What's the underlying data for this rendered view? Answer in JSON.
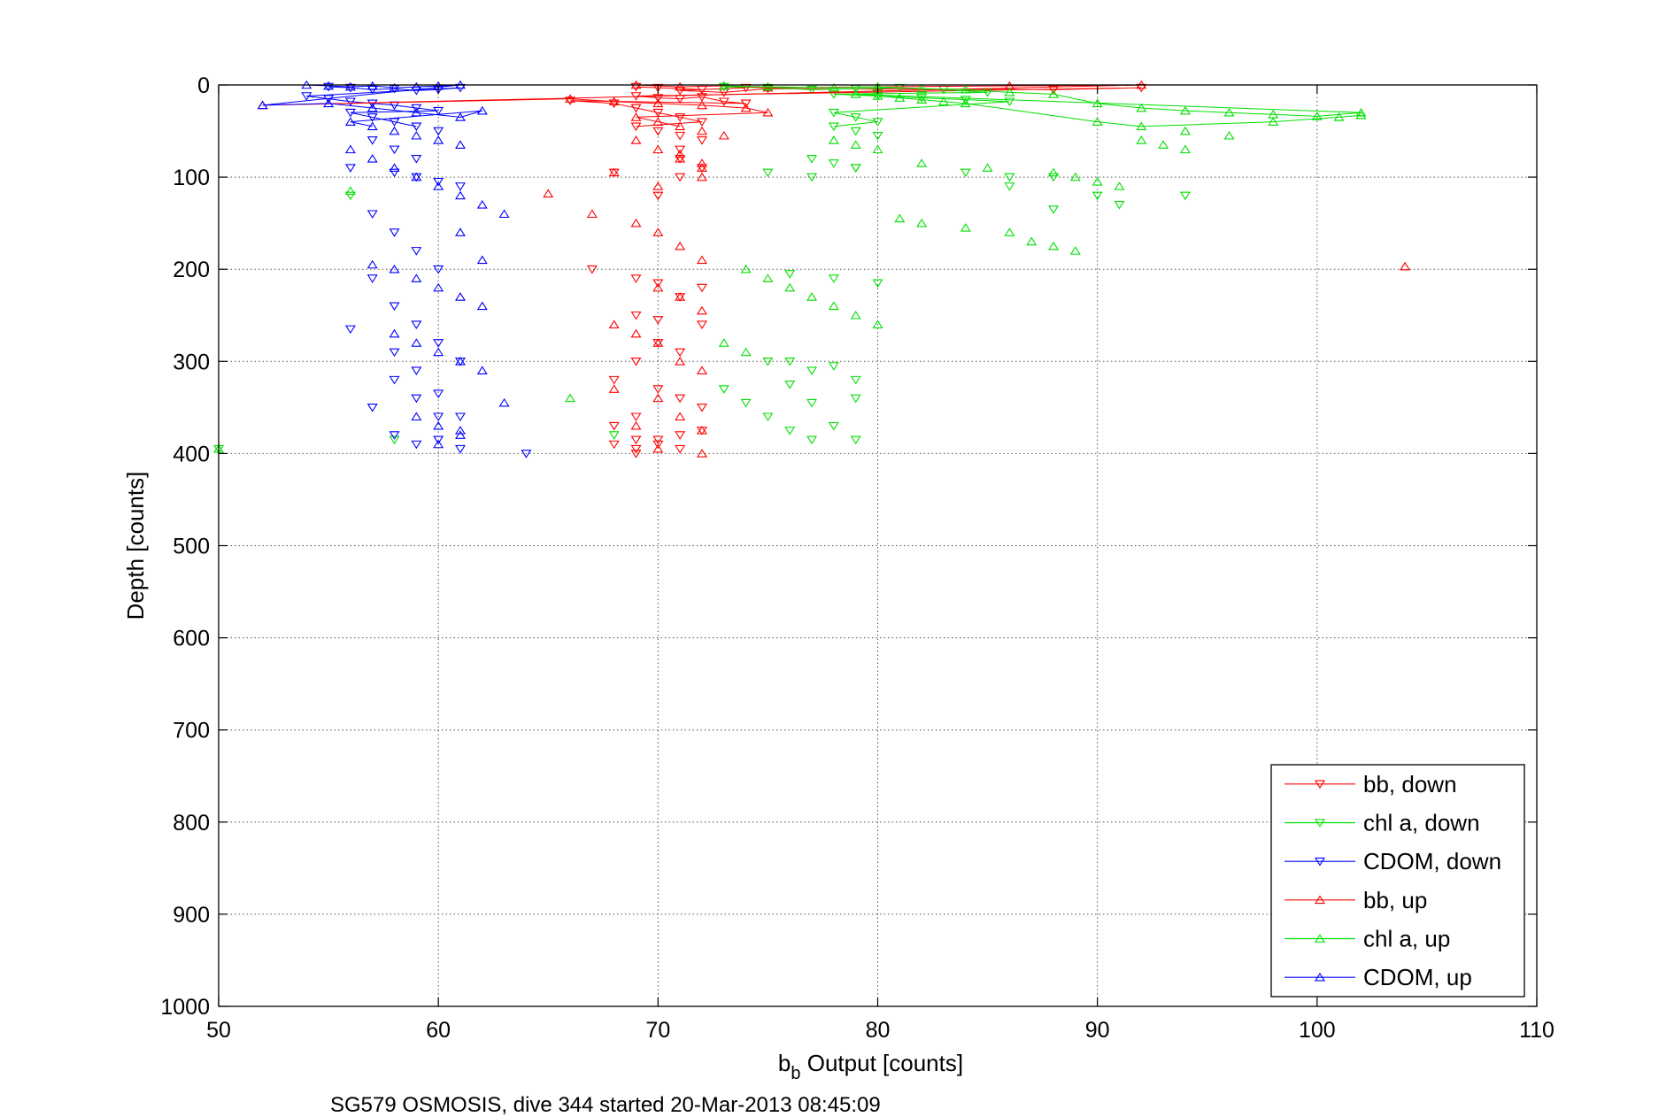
{
  "chart_data": {
    "type": "scatter",
    "xlabel_main": "b",
    "xlabel_sub": "b",
    "xlabel_rest": " Output [counts]",
    "ylabel": "Depth [counts]",
    "footer": "SG579 OSMOSIS, dive 344 started 20-Mar-2013 08:45:09",
    "xlim": [
      50,
      110
    ],
    "ylim": [
      0,
      1000
    ],
    "y_reversed": true,
    "grid": true,
    "legend_position": "bottom-right",
    "xticks": [
      "50",
      "60",
      "70",
      "80",
      "90",
      "100",
      "110"
    ],
    "yticks": [
      "0",
      "100",
      "200",
      "300",
      "400",
      "500",
      "600",
      "700",
      "800",
      "900",
      "1000"
    ],
    "colors": {
      "red": "#ff0000",
      "green": "#00e000",
      "blue": "#0000ff"
    },
    "series": [
      {
        "name": "bb, down",
        "color": "#ff0000",
        "marker": "triangle-down",
        "x": [
          69,
          70,
          72,
          74,
          71,
          73,
          75,
          88,
          92,
          69,
          70,
          71,
          72,
          73,
          74,
          66,
          68,
          69,
          70,
          71,
          72,
          69,
          70,
          71,
          72,
          71,
          71,
          72,
          71,
          68,
          70,
          67,
          69,
          70,
          72,
          71,
          69,
          70,
          72,
          70,
          71,
          69,
          68,
          70,
          71,
          72,
          69,
          68,
          69,
          70,
          71,
          72,
          71,
          68,
          69,
          70,
          69
        ],
        "y": [
          2,
          3,
          5,
          3,
          6,
          8,
          4,
          5,
          3,
          12,
          14,
          15,
          13,
          18,
          20,
          17,
          20,
          25,
          30,
          35,
          40,
          45,
          50,
          55,
          60,
          70,
          80,
          90,
          100,
          95,
          120,
          200,
          210,
          215,
          220,
          230,
          250,
          255,
          260,
          280,
          290,
          300,
          320,
          330,
          340,
          350,
          360,
          370,
          385,
          390,
          380,
          375,
          395,
          390,
          400,
          385,
          395
        ]
      },
      {
        "name": "chl a, down",
        "color": "#00e000",
        "marker": "triangle-down",
        "x": [
          73,
          75,
          77,
          79,
          81,
          83,
          85,
          78,
          80,
          82,
          84,
          86,
          78,
          79,
          80,
          78,
          79,
          80,
          77,
          78,
          79,
          75,
          77,
          79,
          84,
          86,
          88,
          86,
          88,
          90,
          91,
          94,
          76,
          78,
          80,
          78,
          79,
          76,
          77,
          79,
          75,
          76,
          77,
          78,
          79,
          56,
          58,
          50,
          68,
          74,
          75,
          73,
          76,
          77
        ],
        "y": [
          2,
          3,
          5,
          4,
          3,
          5,
          8,
          10,
          12,
          14,
          16,
          18,
          30,
          35,
          40,
          45,
          50,
          55,
          80,
          85,
          90,
          95,
          100,
          90,
          95,
          100,
          100,
          110,
          135,
          120,
          130,
          120,
          205,
          210,
          215,
          305,
          340,
          300,
          310,
          320,
          300,
          325,
          345,
          370,
          385,
          120,
          385,
          395,
          380,
          345,
          360,
          330,
          375,
          385
        ]
      },
      {
        "name": "CDOM, down",
        "color": "#0000ff",
        "marker": "triangle-down",
        "x": [
          55,
          56,
          57,
          58,
          59,
          60,
          61,
          54,
          55,
          56,
          57,
          58,
          59,
          60,
          56,
          57,
          58,
          59,
          60,
          57,
          58,
          59,
          56,
          58,
          59,
          60,
          61,
          57,
          58,
          59,
          60,
          57,
          58,
          59,
          60,
          61,
          58,
          59,
          60,
          56,
          57,
          58,
          59,
          60,
          61,
          58,
          59,
          60,
          61,
          64
        ],
        "y": [
          2,
          3,
          5,
          4,
          6,
          5,
          3,
          12,
          15,
          18,
          20,
          22,
          25,
          28,
          30,
          35,
          40,
          45,
          50,
          60,
          70,
          80,
          90,
          95,
          100,
          105,
          110,
          140,
          160,
          180,
          200,
          210,
          240,
          260,
          280,
          300,
          320,
          340,
          360,
          265,
          350,
          380,
          390,
          385,
          395,
          290,
          310,
          335,
          360,
          400
        ]
      },
      {
        "name": "bb, up",
        "color": "#ff0000",
        "marker": "triangle-up",
        "x": [
          69,
          71,
          73,
          75,
          80,
          86,
          92,
          52,
          66,
          68,
          70,
          72,
          74,
          75,
          69,
          70,
          71,
          72,
          73,
          69,
          70,
          71,
          72,
          71,
          72,
          68,
          70,
          72,
          65,
          67,
          69,
          70,
          71,
          72,
          70,
          71,
          72,
          68,
          69,
          70,
          71,
          72,
          68,
          70,
          71,
          72,
          69,
          70,
          72,
          104
        ],
        "y": [
          0,
          2,
          1,
          3,
          2,
          1,
          0,
          22,
          15,
          18,
          20,
          22,
          25,
          30,
          35,
          40,
          45,
          50,
          55,
          60,
          70,
          80,
          90,
          75,
          85,
          95,
          110,
          100,
          118,
          140,
          150,
          160,
          175,
          190,
          220,
          230,
          245,
          260,
          270,
          280,
          300,
          310,
          330,
          340,
          360,
          375,
          370,
          395,
          400,
          197
        ]
      },
      {
        "name": "chl a, up",
        "color": "#00e000",
        "marker": "triangle-up",
        "x": [
          73,
          75,
          78,
          80,
          82,
          84,
          86,
          88,
          90,
          92,
          94,
          96,
          98,
          100,
          102,
          79,
          80,
          81,
          82,
          83,
          84,
          90,
          92,
          94,
          96,
          98,
          101,
          102,
          78,
          79,
          80,
          92,
          93,
          94,
          82,
          85,
          88,
          89,
          90,
          91,
          81,
          82,
          84,
          86,
          87,
          88,
          89,
          74,
          75,
          76,
          77,
          78,
          79,
          80,
          73,
          74,
          66,
          56,
          50
        ],
        "y": [
          1,
          2,
          3,
          2,
          4,
          5,
          8,
          10,
          20,
          25,
          28,
          30,
          32,
          34,
          30,
          10,
          12,
          14,
          16,
          18,
          20,
          40,
          45,
          50,
          55,
          40,
          35,
          33,
          60,
          65,
          70,
          60,
          65,
          70,
          85,
          90,
          95,
          100,
          105,
          110,
          145,
          150,
          155,
          160,
          170,
          175,
          180,
          200,
          210,
          220,
          230,
          240,
          250,
          260,
          280,
          290,
          340,
          115,
          395
        ]
      },
      {
        "name": "CDOM, up",
        "color": "#0000ff",
        "marker": "triangle-up",
        "x": [
          54,
          55,
          56,
          57,
          58,
          59,
          60,
          61,
          52,
          55,
          57,
          59,
          61,
          62,
          56,
          57,
          58,
          59,
          60,
          61,
          56,
          57,
          58,
          59,
          60,
          61,
          62,
          63,
          61,
          62,
          57,
          58,
          59,
          60,
          61,
          62,
          58,
          59,
          60,
          61,
          62,
          63,
          59,
          60,
          61,
          60,
          61
        ],
        "y": [
          0,
          1,
          2,
          1,
          3,
          2,
          1,
          0,
          22,
          20,
          25,
          30,
          35,
          28,
          40,
          45,
          50,
          55,
          60,
          65,
          70,
          80,
          90,
          100,
          110,
          120,
          130,
          140,
          160,
          190,
          195,
          200,
          210,
          220,
          230,
          240,
          270,
          280,
          290,
          300,
          310,
          345,
          360,
          370,
          375,
          390,
          380
        ]
      }
    ]
  }
}
